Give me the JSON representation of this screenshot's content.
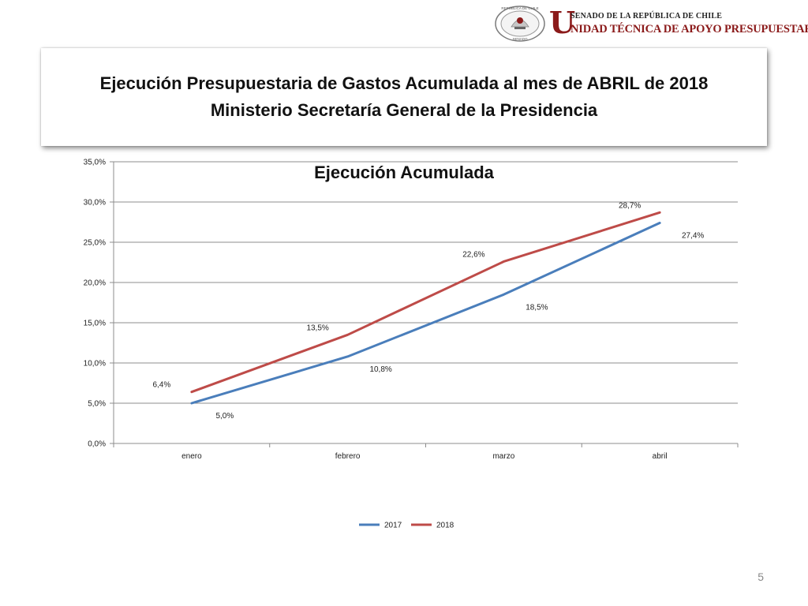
{
  "logo": {
    "senate_line": "SENADO DE LA REPÚBLICA DE CHILE",
    "unit_initial": "U",
    "unit_name": "NIDAD TÉCNICA DE APOYO PRESUPUESTARIO",
    "seal_text_top": "REPÚBLICA DE CHILE",
    "seal_text_bottom": "SENADO"
  },
  "header": {
    "title_line1": "Ejecución Presupuestaria de Gastos Acumulada al mes de ABRIL de 2018",
    "title_line2": "Ministerio Secretaría General de la Presidencia"
  },
  "chart_data": {
    "type": "line",
    "title": "Ejecución Acumulada",
    "categories": [
      "enero",
      "febrero",
      "marzo",
      "abril"
    ],
    "series": [
      {
        "name": "2017",
        "values": [
          5.0,
          10.8,
          18.5,
          27.4
        ],
        "labels": [
          "5,0%",
          "10,8%",
          "18,5%",
          "27,4%"
        ],
        "color": "#4a7ebb"
      },
      {
        "name": "2018",
        "values": [
          6.4,
          13.5,
          22.6,
          28.7
        ],
        "labels": [
          "6,4%",
          "13,5%",
          "22,6%",
          "28,7%"
        ],
        "color": "#be4b48"
      }
    ],
    "ylim": [
      0,
      35
    ],
    "yticks": [
      "0,0%",
      "5,0%",
      "10,0%",
      "15,0%",
      "20,0%",
      "25,0%",
      "30,0%",
      "35,0%"
    ],
    "grid": true,
    "legend_position": "bottom"
  },
  "footer": {
    "page_number": "5"
  }
}
